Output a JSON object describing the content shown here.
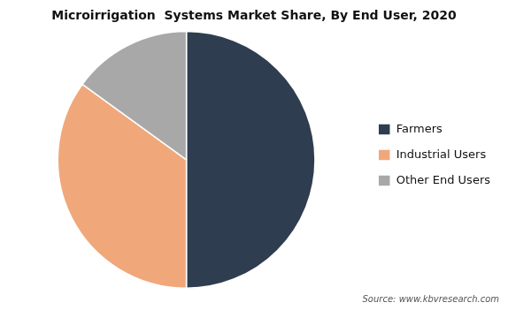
{
  "chart_data": {
    "type": "pie",
    "title": "Microirrigation  Systems Market Share, By End User, 2020",
    "categories": [
      "Farmers",
      "Industrial Users",
      "Other End Users"
    ],
    "values": [
      50,
      35,
      15
    ],
    "colors": [
      "#2e3d4f",
      "#f0a87a",
      "#a8a8a8"
    ],
    "legend": "right",
    "annotation": "Source: www.kbvresearch.com"
  }
}
